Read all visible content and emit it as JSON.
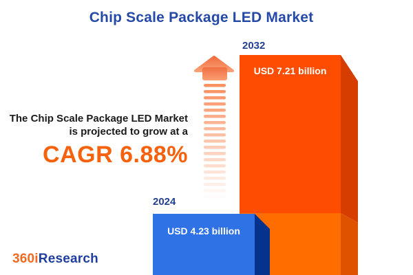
{
  "title": "Chip Scale Package LED Market",
  "intro": {
    "line1": "The Chip Scale Package LED Market",
    "line2": "is projected to grow at a",
    "cagr_text": "CAGR 6.88%"
  },
  "bars": {
    "y2024": {
      "year": "2024",
      "value_label": "USD 4.23 billion"
    },
    "y2032": {
      "year": "2032",
      "value_label": "USD 7.21 billion"
    }
  },
  "logo": {
    "part1": "360i",
    "part2": "Research"
  },
  "icons": {
    "growth_arrow": "up-arrow-fading-stripes"
  },
  "colors": {
    "title_blue": "#2449A6",
    "year_blue": "#24408F",
    "text_dark": "#1A1A1A",
    "cagr_orange": "#F5610D",
    "bar2032_face": "#FF4D00",
    "bar2032_side": "#D63D00",
    "bar2032_lower_face": "#FF6D00",
    "bar2032_lower_side": "#DE5300",
    "bar2024_face": "#2E72E6",
    "bar2024_side": "#04328C",
    "arrow_head_top": "#EE6F41",
    "arrow_head_bottom": "#FB9F73",
    "arrow_stripe": "#FB8A58",
    "logo_orange": "#F26A21",
    "logo_blue": "#1F3E9E"
  },
  "chart_data": {
    "type": "bar",
    "title": "Chip Scale Package LED Market",
    "categories": [
      "2024",
      "2032"
    ],
    "values": [
      4.23,
      7.21
    ],
    "unit": "USD billion",
    "value_labels": [
      "USD 4.23 billion",
      "USD 7.21 billion"
    ],
    "cagr_percent": 6.88,
    "series_colors": [
      "#2E72E6",
      "#FF4D00"
    ],
    "orientation": "vertical",
    "grid": false,
    "legend": false,
    "annotation": "The Chip Scale Package LED Market is projected to grow at a CAGR 6.88%"
  }
}
